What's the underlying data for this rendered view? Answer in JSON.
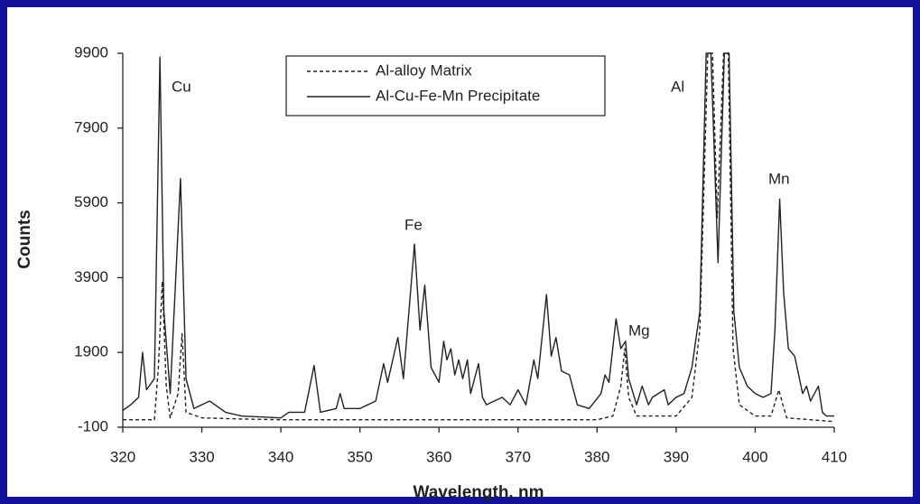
{
  "chart_data": {
    "type": "line",
    "x_label": "Wavelength, nm",
    "y_label": "Counts",
    "xlim": [
      320,
      410
    ],
    "xticks": [
      320,
      330,
      340,
      350,
      360,
      370,
      380,
      390,
      400,
      410
    ],
    "ylim": [
      -100,
      9900
    ],
    "yticks": [
      -100,
      1900,
      3900,
      5900,
      7900,
      9900
    ],
    "annotations": [
      "Cu",
      "Fe",
      "Mg",
      "Al",
      "Mn"
    ],
    "series": [
      {
        "name": "Al-alloy Matrix",
        "color": "#222222",
        "dash": "4,3",
        "x": [
          320,
          322,
          324,
          324.5,
          325,
          325.5,
          326,
          327,
          327.5,
          328,
          330,
          335,
          340,
          345,
          350,
          355,
          360,
          365,
          370,
          375,
          380,
          382,
          383,
          383.5,
          384,
          385,
          388,
          390,
          392,
          393,
          394,
          394.6,
          395.2,
          396,
          396.6,
          397.2,
          398,
          400,
          402,
          403,
          403.5,
          404,
          407,
          410
        ],
        "values": [
          100,
          100,
          100,
          1500,
          3800,
          1000,
          150,
          800,
          2400,
          300,
          150,
          120,
          100,
          100,
          100,
          100,
          100,
          100,
          100,
          100,
          100,
          200,
          1000,
          2000,
          700,
          200,
          200,
          200,
          700,
          2500,
          9900,
          9900,
          5500,
          9900,
          9900,
          2000,
          500,
          200,
          200,
          900,
          500,
          150,
          100,
          50
        ]
      },
      {
        "name": "Al-Cu-Fe-Mn Precipitate",
        "color": "#222222",
        "dash": "none",
        "x": [
          320,
          321,
          322,
          322.5,
          323,
          324,
          324.7,
          325.2,
          326,
          327.3,
          328,
          329,
          330,
          331,
          333,
          335,
          340,
          341,
          343,
          344.2,
          345,
          347,
          347.5,
          348,
          350,
          352,
          353,
          353.5,
          354.8,
          355.5,
          356.9,
          357.6,
          358.2,
          359,
          360,
          360.6,
          361,
          361.5,
          362,
          362.5,
          363,
          363.6,
          364,
          365,
          365.5,
          366,
          368,
          369,
          370,
          371,
          372,
          372.5,
          373.6,
          374.2,
          374.8,
          375.5,
          376.5,
          377.5,
          379,
          380.5,
          381,
          381.5,
          382.4,
          383,
          383.6,
          384,
          385,
          385.7,
          386.5,
          387,
          388.5,
          389,
          390,
          391,
          392,
          393,
          393.8,
          394.4,
          395.3,
          396.1,
          396.7,
          397.3,
          398,
          399,
          400,
          401,
          402,
          402.5,
          403.1,
          403.6,
          404.2,
          405,
          406,
          406.5,
          407,
          408,
          408.5,
          409,
          410
        ],
        "values": [
          350,
          500,
          700,
          1900,
          900,
          1200,
          9800,
          3000,
          800,
          6550,
          1200,
          400,
          500,
          600,
          300,
          200,
          150,
          300,
          300,
          1550,
          300,
          400,
          800,
          400,
          400,
          600,
          1600,
          1100,
          2300,
          1200,
          4800,
          2500,
          3700,
          1500,
          1100,
          2200,
          1700,
          2000,
          1300,
          1700,
          1200,
          1700,
          800,
          1600,
          700,
          500,
          700,
          500,
          900,
          500,
          1700,
          1200,
          3450,
          1800,
          2300,
          1400,
          1300,
          500,
          400,
          800,
          1300,
          1100,
          2800,
          2000,
          2200,
          1200,
          500,
          1000,
          500,
          700,
          900,
          500,
          700,
          800,
          1500,
          3000,
          9900,
          9900,
          4300,
          9900,
          9900,
          3000,
          1500,
          1000,
          800,
          700,
          800,
          2500,
          6000,
          3500,
          2000,
          1800,
          800,
          1000,
          600,
          1000,
          300,
          200,
          200
        ]
      }
    ]
  }
}
